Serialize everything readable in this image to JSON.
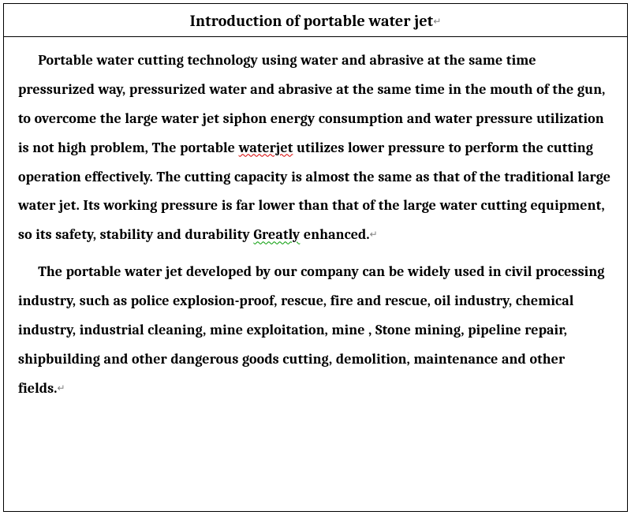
{
  "document": {
    "title": "Introduction of portable water jet",
    "paragraph_mark": "↵",
    "styling": {
      "container_border_color": "#000000",
      "background_color": "#ffffff",
      "title_font_size_pt": 15,
      "title_font_weight": "bold",
      "body_font_size_pt": 13,
      "body_font_weight": "bold",
      "body_line_height": 2.05,
      "text_indent_em": 1.4,
      "font_family": "Cambria / Georgia serif",
      "text_color": "#000000",
      "spellcheck_wavy_red": "#d80000",
      "grammarcheck_wavy_green": "#009900",
      "paragraph_mark_color": "#7f7f7f"
    },
    "paragraphs": [
      {
        "runs": [
          {
            "t": "Portable water cutting technology using water and abrasive at the same time pressurized way, pressurized water and abrasive at the same time in the mouth of the gun, to overcome the large water jet siphon energy consumption and water pressure utilization is not high problem, The portable "
          },
          {
            "t": "waterjet",
            "mark": "red"
          },
          {
            "t": " utilizes lower pressure to perform the cutting operation effectively. The cutting capacity is almost the same as that of the traditional large water jet. Its working pressure is far lower than that of the large water cutting equipment, so its safety, stability and durability "
          },
          {
            "t": "Greatly",
            "mark": "green"
          },
          {
            "t": " enhanced."
          }
        ]
      },
      {
        "runs": [
          {
            "t": "The portable water jet developed by our company can be widely used in civil processing industry, such as police explosion-proof, rescue, fire and rescue, oil industry, chemical industry, industrial cleaning, mine exploitation, mine , Stone mining, pipeline repair, shipbuilding and other dangerous goods cutting, demolition, maintenance and other fields."
          }
        ]
      }
    ]
  }
}
